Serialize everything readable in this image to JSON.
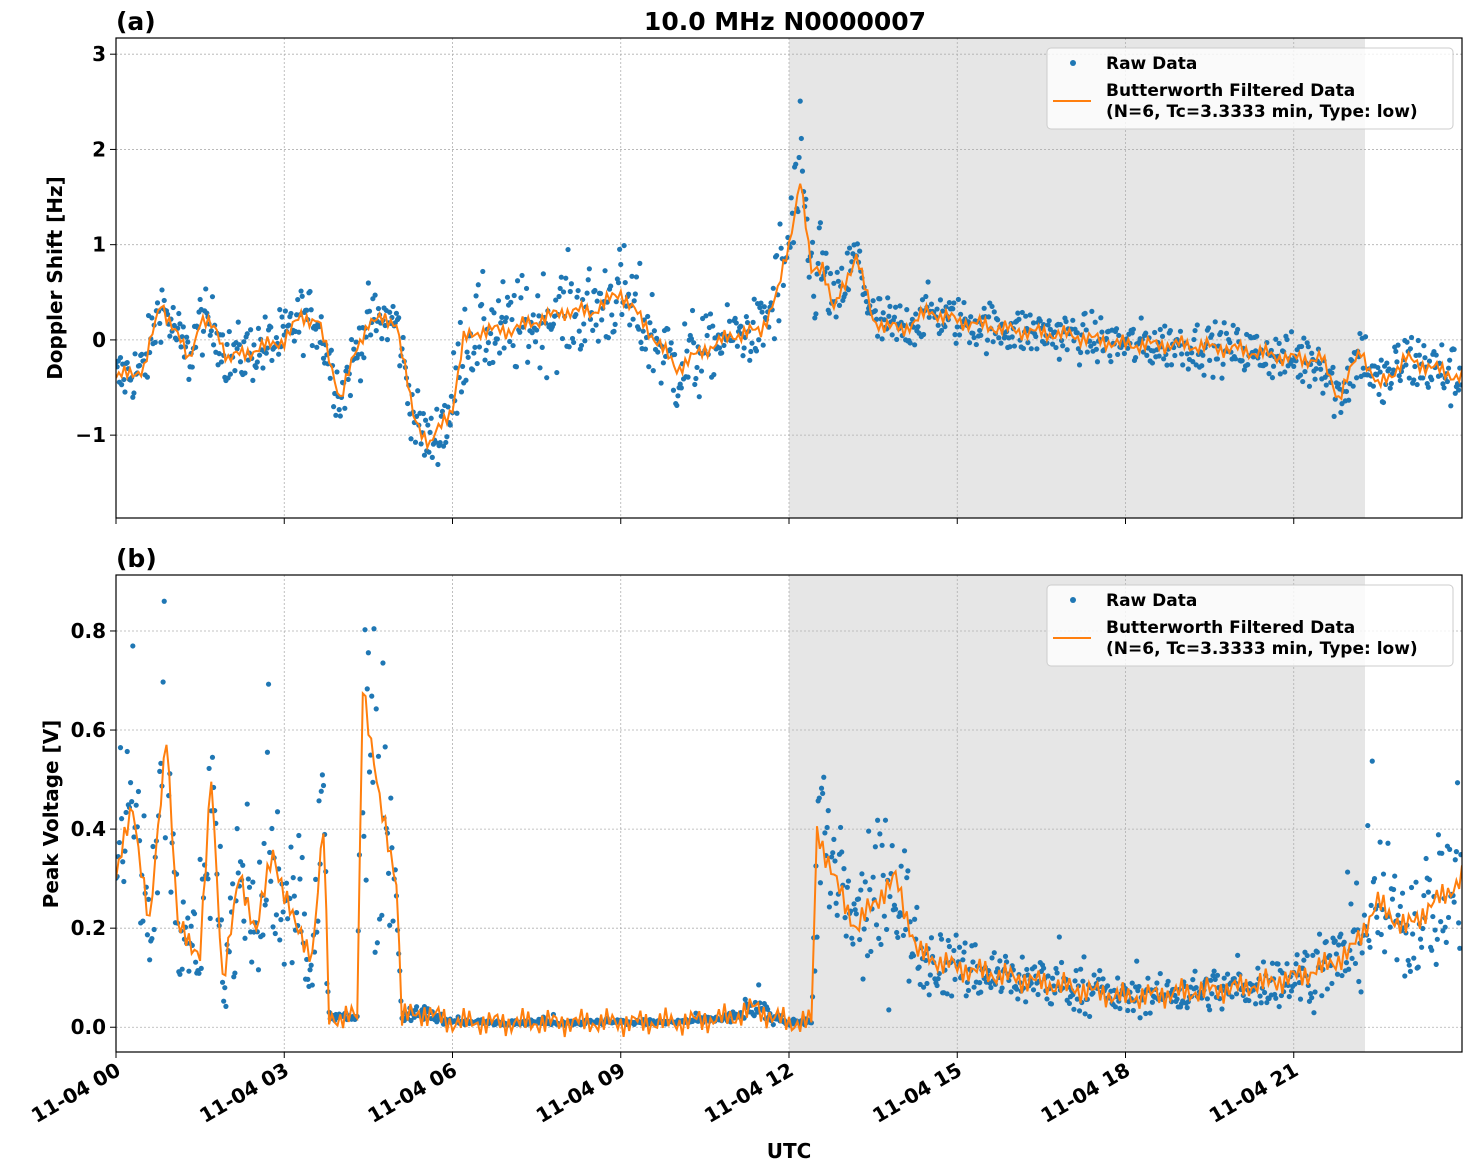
{
  "chart_data": [
    {
      "type": "scatter",
      "panel_label": "(a)",
      "title": "10.0 MHz N0000007",
      "ylabel": "Doppler Shift [Hz]",
      "xlabel": "",
      "xlim": [
        "11-04 00:00",
        "11-05 00:00"
      ],
      "ylim": [
        -1.87,
        3.17
      ],
      "yticks": [
        -1,
        0,
        1,
        2,
        3
      ],
      "ytick_labels": [
        "−1",
        "0",
        "1",
        "2",
        "3"
      ],
      "grid": true,
      "shaded_interval_hours": [
        12.0,
        22.27
      ],
      "legend": {
        "placement": "top-right",
        "entries": [
          "Raw Data",
          "Butterworth Filtered Data\n(N=6, Tc=3.3333 min, Type: low)"
        ]
      },
      "series": [
        {
          "name": "Raw Data",
          "kind": "points",
          "color": "#1f77b4",
          "note_spread_hz": [
            [
              0,
              0.35
            ],
            [
              5,
              0.35
            ],
            [
              6,
              0.5
            ],
            [
              10,
              0.5
            ],
            [
              11.5,
              0.35
            ],
            [
              12,
              0.7
            ],
            [
              12.6,
              0.5
            ],
            [
              14,
              0.3
            ],
            [
              20,
              0.25
            ],
            [
              24,
              0.35
            ]
          ]
        },
        {
          "name": "Butterworth Filtered Data (N=6, Tc=3.3333 min, Type: low)",
          "kind": "line",
          "color": "#ff7f0e",
          "x_hours": [
            0,
            0.5,
            0.8,
            1.0,
            1.3,
            1.5,
            1.8,
            2.0,
            2.5,
            3.0,
            3.3,
            3.6,
            4.0,
            4.3,
            4.5,
            5.0,
            5.3,
            5.6,
            6.0,
            6.2,
            6.5,
            7.0,
            7.5,
            8.0,
            8.5,
            9.0,
            9.5,
            10.0,
            10.5,
            11.0,
            11.5,
            11.8,
            12.0,
            12.2,
            12.4,
            12.6,
            12.8,
            13.2,
            13.5,
            14.0,
            14.5,
            15.0,
            16.0,
            17.0,
            18.0,
            19.0,
            20.0,
            21.0,
            21.5,
            21.8,
            22.2,
            22.5,
            23.0,
            23.5,
            24.0
          ],
          "y": [
            -0.4,
            -0.3,
            0.4,
            0.15,
            -0.2,
            0.2,
            0.1,
            -0.2,
            -0.1,
            0.0,
            0.25,
            0.2,
            -0.6,
            -0.1,
            0.2,
            0.2,
            -0.8,
            -1.1,
            -0.7,
            0.0,
            0.1,
            0.1,
            0.2,
            0.3,
            0.3,
            0.5,
            0.1,
            -0.3,
            -0.1,
            0.05,
            0.1,
            0.5,
            1.0,
            1.7,
            0.7,
            0.8,
            0.3,
            0.9,
            0.2,
            0.1,
            0.3,
            0.2,
            0.1,
            0.05,
            -0.05,
            -0.05,
            -0.1,
            -0.2,
            -0.2,
            -0.6,
            -0.1,
            -0.5,
            -0.2,
            -0.3,
            -0.4
          ]
        }
      ]
    },
    {
      "type": "scatter",
      "panel_label": "(b)",
      "title": "",
      "ylabel": "Peak Voltage [V]",
      "xlabel": "UTC",
      "xlim": [
        "11-04 00:00",
        "11-05 00:00"
      ],
      "ylim": [
        -0.05,
        0.913
      ],
      "yticks": [
        0.0,
        0.2,
        0.4,
        0.6,
        0.8
      ],
      "ytick_labels": [
        "0.0",
        "0.2",
        "0.4",
        "0.6",
        "0.8"
      ],
      "xticks_hours": [
        0,
        3,
        6,
        9,
        12,
        15,
        18,
        21
      ],
      "xtick_labels": [
        "11-04 00",
        "11-04 03",
        "11-04 06",
        "11-04 09",
        "11-04 12",
        "11-04 15",
        "11-04 18",
        "11-04 21"
      ],
      "grid": true,
      "shaded_interval_hours": [
        12.0,
        22.27
      ],
      "legend": {
        "placement": "top-right",
        "entries": [
          "Raw Data",
          "Butterworth Filtered Data\n(N=6, Tc=3.3333 min, Type: low)"
        ]
      },
      "series": [
        {
          "name": "Raw Data",
          "kind": "points",
          "color": "#1f77b4"
        },
        {
          "name": "Butterworth Filtered Data (N=6, Tc=3.3333 min, Type: low)",
          "kind": "line",
          "color": "#ff7f0e",
          "x_hours": [
            0,
            0.3,
            0.6,
            0.9,
            1.1,
            1.5,
            1.7,
            1.9,
            2.2,
            2.5,
            2.8,
            3.2,
            3.5,
            3.7,
            3.8,
            4.3,
            4.4,
            4.7,
            5.0,
            5.1,
            5.5,
            6.0,
            7,
            8,
            9,
            10,
            11,
            11.4,
            11.7,
            12.0,
            12.4,
            12.5,
            12.8,
            13.2,
            13.5,
            13.9,
            14.3,
            15,
            16,
            17,
            18,
            19,
            20,
            21,
            21.5,
            22,
            22.5,
            23,
            23.5,
            24
          ],
          "y": [
            0.3,
            0.45,
            0.2,
            0.6,
            0.2,
            0.15,
            0.5,
            0.1,
            0.3,
            0.2,
            0.35,
            0.2,
            0.15,
            0.4,
            0.02,
            0.02,
            0.7,
            0.45,
            0.3,
            0.02,
            0.03,
            0.01,
            0.01,
            0.01,
            0.01,
            0.01,
            0.02,
            0.04,
            0.02,
            0.01,
            0.01,
            0.4,
            0.3,
            0.2,
            0.25,
            0.3,
            0.15,
            0.12,
            0.1,
            0.08,
            0.06,
            0.07,
            0.08,
            0.1,
            0.12,
            0.15,
            0.25,
            0.2,
            0.25,
            0.3
          ]
        }
      ]
    }
  ]
}
